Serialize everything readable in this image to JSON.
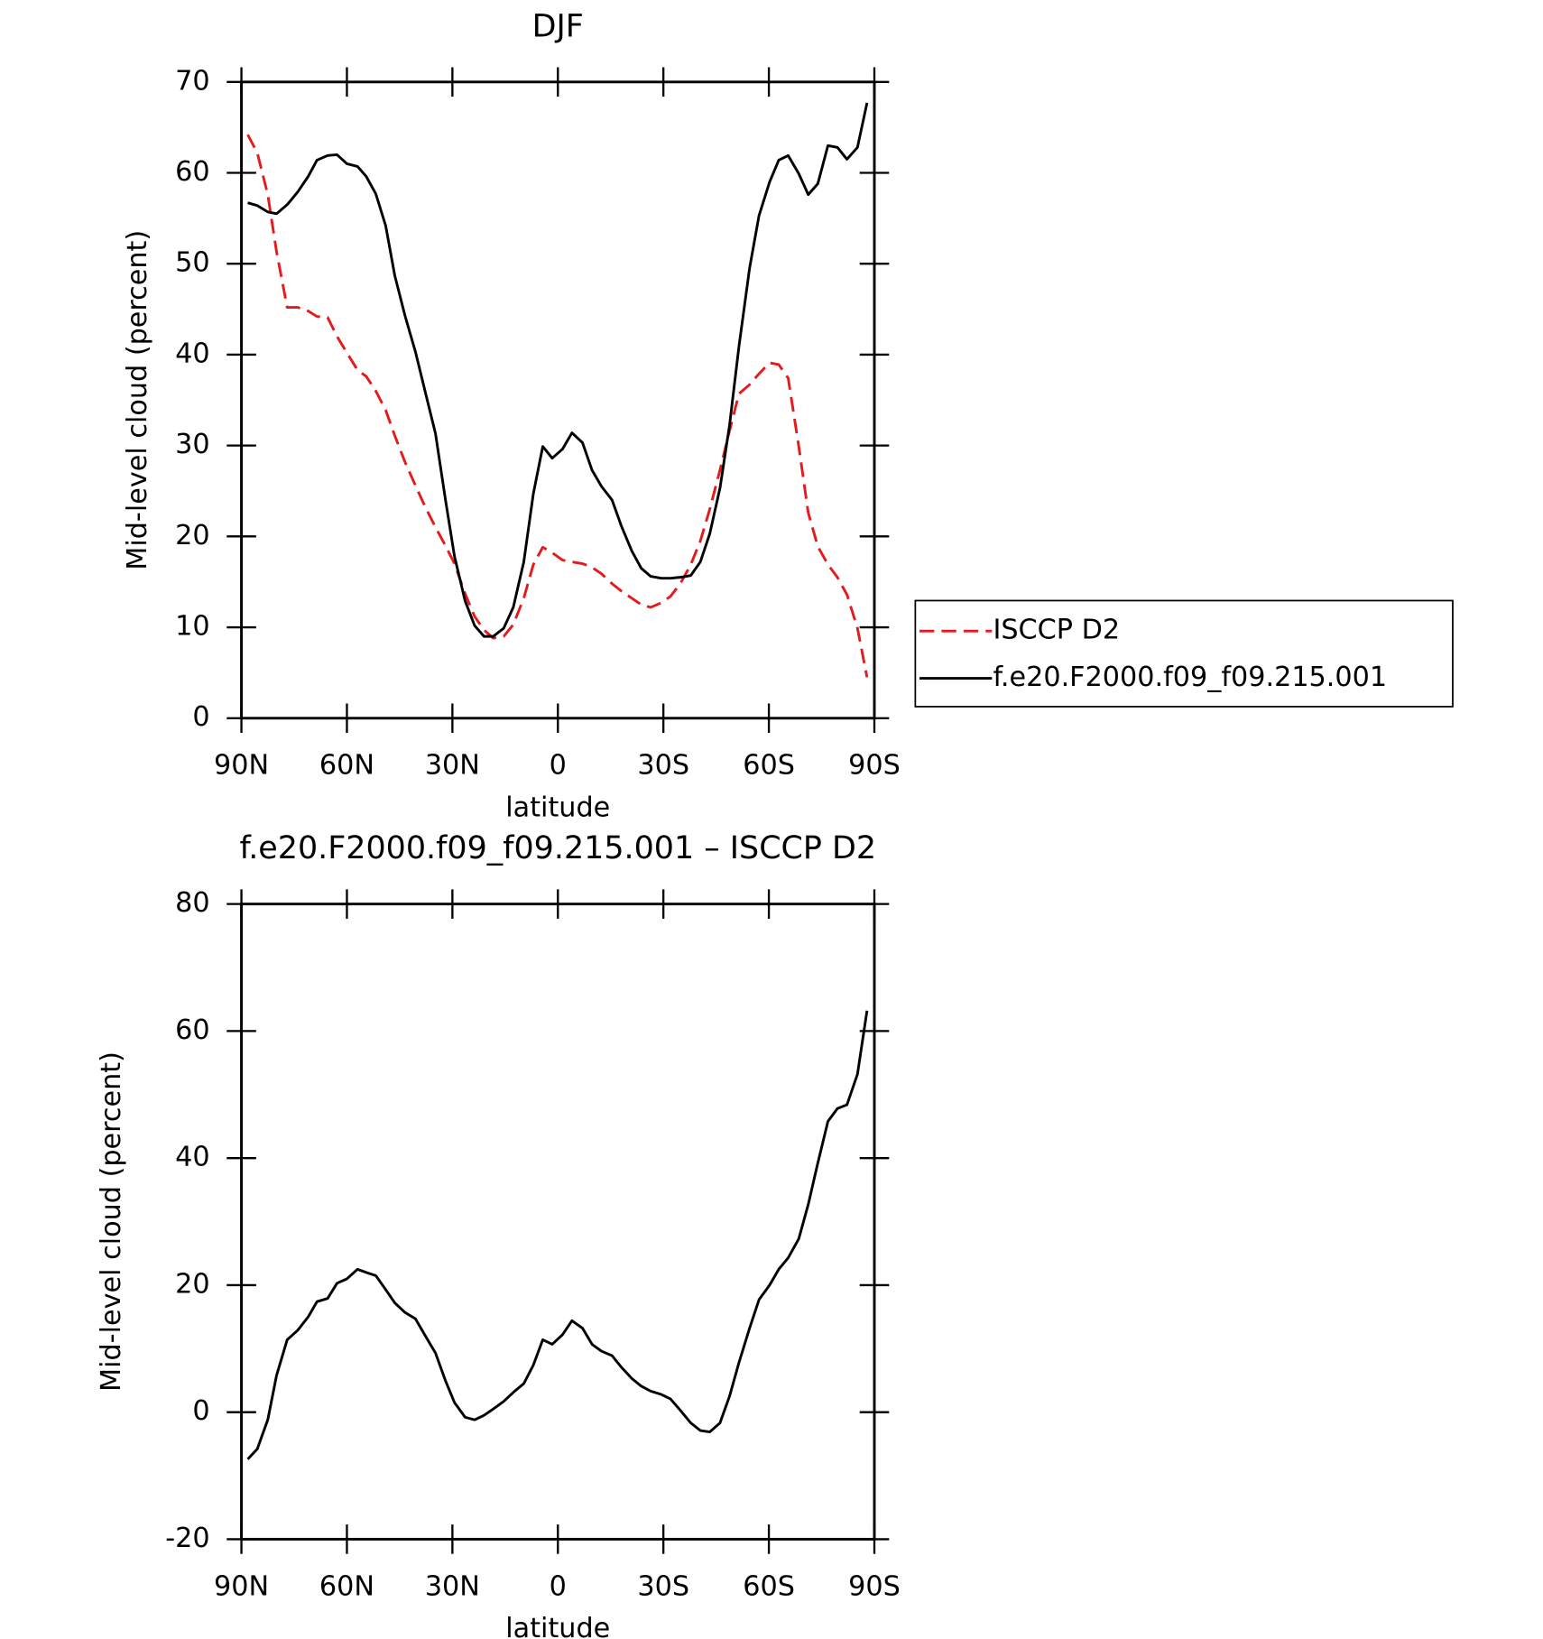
{
  "chart_data": [
    {
      "type": "line",
      "title": "DJF",
      "xlabel": "latitude",
      "ylabel": "Mid-level cloud (percent)",
      "x": [
        88.2,
        85.5,
        82.5,
        80,
        77,
        74,
        71,
        68.5,
        65.5,
        62.8,
        60,
        57,
        54.5,
        51.8,
        49,
        46.4,
        43.5,
        40.5,
        37.8,
        34.8,
        32,
        29.4,
        26.4,
        23.7,
        21,
        18.4,
        15.4,
        12.7,
        9.7,
        7,
        4.3,
        1.6,
        -1.3,
        -4,
        -7,
        -9.7,
        -12.4,
        -15.4,
        -18,
        -21,
        -23.7,
        -26.4,
        -29.4,
        -32,
        -34.8,
        -37.8,
        -40.5,
        -43.2,
        -46.1,
        -48.8,
        -51.5,
        -54.5,
        -57.2,
        -60.2,
        -62.8,
        -65.5,
        -68.5,
        -71.2,
        -73.9,
        -76.8,
        -79.5,
        -82.2,
        -85.2,
        -87.9
      ],
      "series": [
        {
          "name": "ISCCP D2",
          "color": "#e41a1c",
          "line_style": "dashed",
          "values": [
            64.2,
            62.2,
            57.6,
            51.3,
            45.2,
            45.2,
            44.8,
            44.2,
            44.1,
            42.0,
            40.2,
            38.3,
            37.6,
            36.0,
            33.9,
            31.1,
            28.2,
            25.6,
            23.3,
            21.0,
            19.0,
            17.0,
            13.7,
            11.2,
            9.7,
            8.8,
            9.0,
            10.3,
            13.2,
            16.9,
            18.8,
            18.2,
            17.4,
            17.2,
            17.0,
            16.6,
            15.9,
            14.8,
            14.0,
            13.2,
            12.5,
            12.2,
            12.7,
            13.4,
            14.8,
            16.9,
            19.5,
            23.0,
            27.3,
            31.6,
            35.7,
            36.7,
            37.9,
            39.1,
            38.9,
            37.4,
            29.9,
            22.6,
            18.9,
            16.9,
            15.5,
            13.6,
            9.9,
            4.5
          ]
        },
        {
          "name": "f.e20.F2000.f09_f09.215.001",
          "color": "#000000",
          "line_style": "solid",
          "values": [
            56.7,
            56.4,
            55.7,
            55.5,
            56.5,
            57.9,
            59.6,
            61.4,
            61.9,
            62.0,
            61.0,
            60.7,
            59.6,
            57.7,
            54.2,
            48.7,
            44.3,
            40.3,
            36.0,
            31.3,
            24.1,
            17.8,
            12.9,
            10.2,
            9.0,
            9.0,
            9.9,
            12.2,
            17.2,
            24.7,
            29.9,
            28.6,
            29.6,
            31.4,
            30.3,
            27.3,
            25.5,
            24.0,
            21.2,
            18.4,
            16.5,
            15.6,
            15.4,
            15.4,
            15.5,
            15.7,
            17.2,
            20.3,
            25.3,
            32.2,
            40.9,
            49.5,
            55.3,
            59.0,
            61.4,
            61.9,
            59.9,
            57.6,
            58.8,
            63.0,
            62.8,
            61.5,
            62.8,
            67.7
          ]
        }
      ],
      "xlim": [
        90,
        -90
      ],
      "xticks": [
        {
          "value": 90,
          "label": "90N"
        },
        {
          "value": 60,
          "label": "60N"
        },
        {
          "value": 30,
          "label": "30N"
        },
        0,
        {
          "value": -30,
          "label": "30S"
        },
        {
          "value": -60,
          "label": "60S"
        },
        {
          "value": -90,
          "label": "90S"
        }
      ],
      "ylim": [
        0,
        70
      ],
      "yticks": [
        0,
        10,
        20,
        30,
        40,
        50,
        60,
        70
      ],
      "legend": "right"
    },
    {
      "type": "line",
      "title": "f.e20.F2000.f09_f09.215.001 – ISCCP D2",
      "xlabel": "latitude",
      "ylabel": "Mid-level cloud (percent)",
      "x": [
        88.2,
        85.5,
        82.5,
        80,
        77,
        74,
        71,
        68.5,
        65.5,
        62.8,
        60,
        57,
        54.5,
        51.8,
        49,
        46.4,
        43.5,
        40.5,
        37.8,
        34.8,
        32,
        29.4,
        26.4,
        23.7,
        21,
        18.4,
        15.4,
        12.7,
        9.7,
        7,
        4.3,
        1.6,
        -1.3,
        -4,
        -7,
        -9.7,
        -12.4,
        -15.4,
        -18,
        -21,
        -23.7,
        -26.4,
        -29.4,
        -32,
        -34.8,
        -37.8,
        -40.5,
        -43.2,
        -46.1,
        -48.8,
        -51.5,
        -54.5,
        -57.2,
        -60.2,
        -62.8,
        -65.5,
        -68.5,
        -71.2,
        -73.9,
        -76.8,
        -79.5,
        -82.2,
        -85.2,
        -87.9
      ],
      "color": "#000000",
      "values": [
        -7.4,
        -5.8,
        -1.2,
        5.8,
        11.4,
        12.9,
        15.0,
        17.4,
        17.9,
        20.3,
        21.0,
        22.5,
        22.0,
        21.5,
        19.3,
        17.2,
        15.7,
        14.7,
        12.1,
        9.3,
        5.0,
        1.5,
        -0.8,
        -1.2,
        -0.5,
        0.5,
        1.7,
        3.1,
        4.5,
        7.4,
        11.4,
        10.7,
        12.2,
        14.4,
        13.2,
        10.7,
        9.6,
        8.9,
        7.1,
        5.3,
        4.1,
        3.3,
        2.8,
        2.1,
        0.3,
        -1.7,
        -2.9,
        -3.1,
        -1.7,
        2.5,
        7.8,
        13.2,
        17.7,
        20.0,
        22.5,
        24.3,
        27.3,
        32.7,
        39.2,
        45.8,
        47.8,
        48.4,
        53.2,
        63.2
      ],
      "xlim": [
        90,
        -90
      ],
      "xticks": [
        {
          "value": 90,
          "label": "90N"
        },
        {
          "value": 60,
          "label": "60N"
        },
        {
          "value": 30,
          "label": "30N"
        },
        0,
        {
          "value": -30,
          "label": "30S"
        },
        {
          "value": -60,
          "label": "60S"
        },
        {
          "value": -90,
          "label": "90S"
        }
      ],
      "ylim": [
        -20,
        80
      ],
      "yticks": [
        -20,
        0,
        20,
        40,
        60,
        80
      ]
    }
  ]
}
